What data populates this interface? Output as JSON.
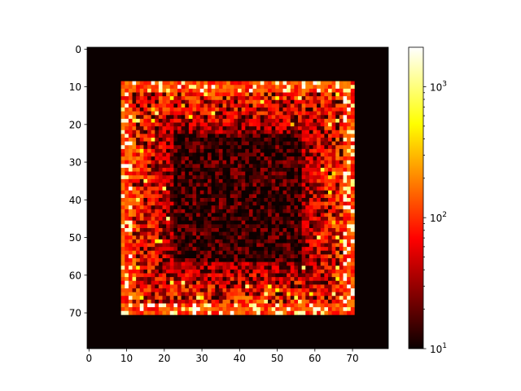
{
  "chart_data": {
    "type": "heatmap",
    "title": "",
    "xlabel": "",
    "ylabel": "",
    "grid": false,
    "colormap": "hot",
    "color_scale": "log",
    "xlim": [
      -0.5,
      79.5
    ],
    "ylim": [
      79.5,
      -0.5
    ],
    "x_ticks": [
      0,
      10,
      20,
      30,
      40,
      50,
      60,
      70
    ],
    "y_ticks": [
      0,
      10,
      20,
      30,
      40,
      50,
      60,
      70
    ],
    "x_tick_labels": [
      "0",
      "10",
      "20",
      "30",
      "40",
      "50",
      "60",
      "70"
    ],
    "y_tick_labels": [
      "0",
      "10",
      "20",
      "30",
      "40",
      "50",
      "60",
      "70"
    ],
    "grid_size": [
      80,
      80
    ],
    "active_region": {
      "rows": [
        9,
        70
      ],
      "cols": [
        9,
        70
      ]
    },
    "background_value": 10,
    "value_range": [
      10,
      2000
    ],
    "colorbar": {
      "scale": "log",
      "range": [
        10,
        2000
      ],
      "tick_values": [
        10,
        100,
        1000
      ],
      "tick_labels": [
        "10^1",
        "10^2",
        "10^3"
      ],
      "minor_tick_values": [
        20,
        30,
        40,
        50,
        60,
        70,
        80,
        90,
        200,
        300,
        400,
        500,
        600,
        700,
        800,
        900
      ]
    }
  },
  "colors": {
    "cmap_black": "#0b0000",
    "cmap_red": "#ff0000",
    "cmap_yellow": "#ffff00",
    "cmap_white": "#ffffff"
  }
}
